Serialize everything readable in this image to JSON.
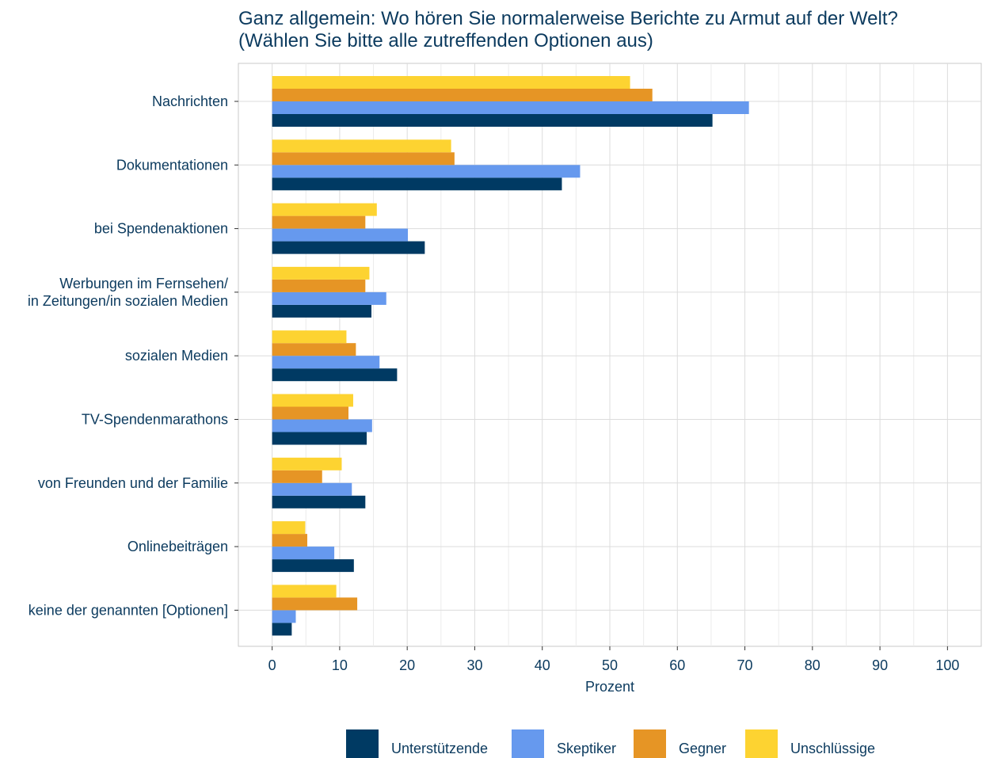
{
  "chart_data": {
    "type": "bar",
    "orientation": "horizontal",
    "title": [
      "Ganz allgemein: Wo hören Sie normalerweise Berichte zu Armut auf der Welt?",
      " (Wählen Sie bitte alle zutreffenden Optionen aus)"
    ],
    "xlabel": "Prozent",
    "ylabel": "",
    "xlim": [
      -5,
      105
    ],
    "xticks": [
      "0",
      "10",
      "20",
      "30",
      "40",
      "50",
      "60",
      "70",
      "80",
      "90",
      "100"
    ],
    "grid": true,
    "legend_position": "bottom",
    "categories": [
      [
        "Nachrichten"
      ],
      [
        "Dokumentationen"
      ],
      [
        "bei Spendenaktionen"
      ],
      [
        "Werbungen im Fernsehen/",
        "in Zeitungen/in sozialen Medien"
      ],
      [
        "sozialen Medien"
      ],
      [
        "TV-Spendenmarathons"
      ],
      [
        "von Freunden und der Familie"
      ],
      [
        "Onlinebeiträgen"
      ],
      [
        "keine der genannten [Optionen]"
      ]
    ],
    "series": [
      {
        "name": "Unterstützende",
        "color": "#003a63",
        "values": [
          65.2,
          42.9,
          22.6,
          14.7,
          18.5,
          14.0,
          13.8,
          12.1,
          2.9
        ]
      },
      {
        "name": "Skeptiker",
        "color": "#6699ee",
        "values": [
          70.6,
          45.6,
          20.1,
          16.9,
          15.9,
          14.8,
          11.8,
          9.2,
          3.5
        ]
      },
      {
        "name": "Gegner",
        "color": "#e69525",
        "values": [
          56.3,
          27.0,
          13.8,
          13.8,
          12.4,
          11.3,
          7.4,
          5.2,
          12.6
        ]
      },
      {
        "name": "Unschlüssige",
        "color": "#fdd331",
        "values": [
          53.0,
          26.5,
          15.5,
          14.4,
          11.0,
          12.0,
          10.3,
          4.9,
          9.5
        ]
      }
    ]
  }
}
